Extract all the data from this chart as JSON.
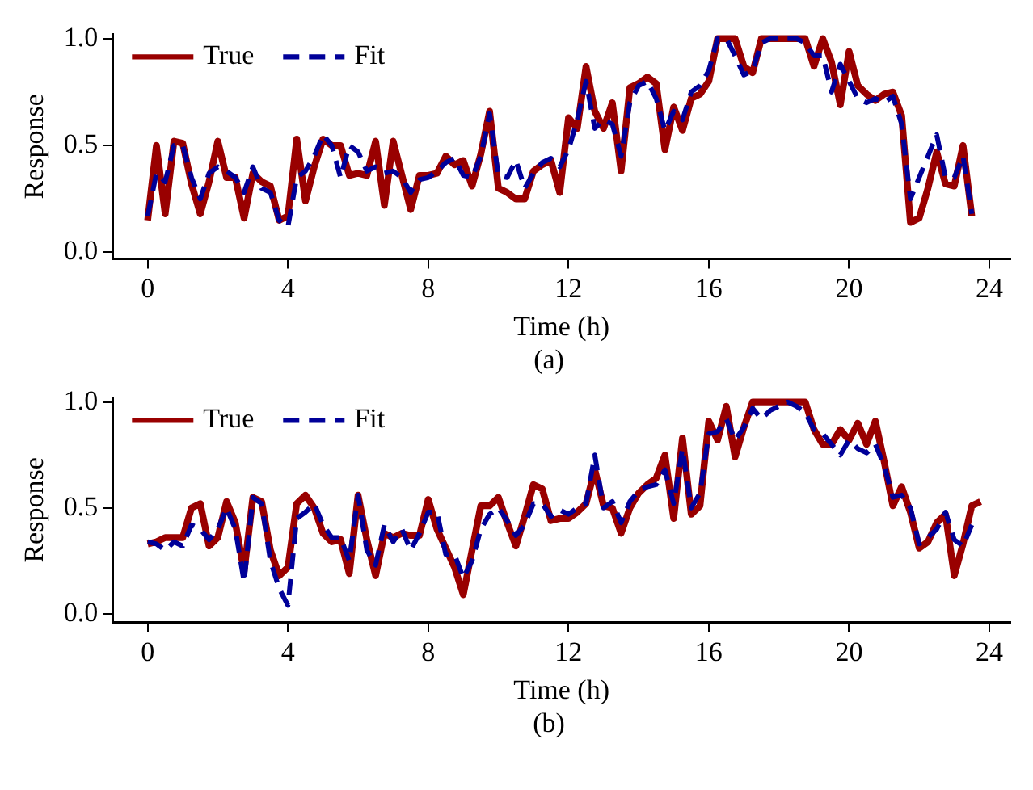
{
  "chart_data": [
    {
      "type": "line",
      "xlabel": "Time (h)",
      "ylabel": "Response",
      "annotations": [
        "(a)"
      ],
      "legend": "top left",
      "grid": false,
      "marker": "none",
      "xlim": [
        -1,
        24.6
      ],
      "xticks": [
        0,
        4,
        8,
        12,
        16,
        20,
        24
      ],
      "ylim": [
        -0.03,
        1.02
      ],
      "yticks": [
        {
          "value": 0,
          "label": "0.0"
        },
        {
          "value": 0.5,
          "label": "0.5"
        },
        {
          "value": 1,
          "label": "1.0"
        }
      ],
      "x": [
        0,
        0.25,
        0.5,
        0.75,
        1,
        1.25,
        1.5,
        1.75,
        2,
        2.25,
        2.5,
        2.75,
        3,
        3.25,
        3.5,
        3.75,
        4,
        4.25,
        4.5,
        4.75,
        5,
        5.25,
        5.5,
        5.75,
        6,
        6.25,
        6.5,
        6.75,
        7,
        7.25,
        7.5,
        7.75,
        8,
        8.25,
        8.5,
        8.75,
        9,
        9.25,
        9.5,
        9.75,
        10,
        10.25,
        10.5,
        10.75,
        11,
        11.25,
        11.5,
        11.75,
        12,
        12.25,
        12.5,
        12.75,
        13,
        13.25,
        13.5,
        13.75,
        14,
        14.25,
        14.5,
        14.75,
        15,
        15.25,
        15.5,
        15.75,
        16,
        16.25,
        16.5,
        16.75,
        17,
        17.25,
        17.5,
        17.75,
        18,
        18.25,
        18.5,
        18.75,
        19,
        19.25,
        19.5,
        19.75,
        20,
        20.25,
        20.5,
        20.75,
        21,
        21.25,
        21.5,
        21.75,
        22,
        22.25,
        22.5,
        22.75,
        23,
        23.25,
        23.5
      ],
      "series": [
        {
          "name": "True",
          "color": "#990000",
          "line_style": "solid",
          "values": [
            0.15,
            0.5,
            0.18,
            0.52,
            0.51,
            0.32,
            0.18,
            0.33,
            0.52,
            0.35,
            0.35,
            0.16,
            0.37,
            0.33,
            0.31,
            0.15,
            0.17,
            0.53,
            0.24,
            0.4,
            0.53,
            0.5,
            0.5,
            0.36,
            0.37,
            0.36,
            0.52,
            0.22,
            0.52,
            0.36,
            0.2,
            0.36,
            0.36,
            0.37,
            0.45,
            0.41,
            0.43,
            0.31,
            0.46,
            0.66,
            0.3,
            0.28,
            0.25,
            0.25,
            0.38,
            0.41,
            0.43,
            0.28,
            0.63,
            0.58,
            0.87,
            0.66,
            0.58,
            0.7,
            0.38,
            0.77,
            0.79,
            0.82,
            0.79,
            0.48,
            0.68,
            0.57,
            0.72,
            0.74,
            0.8,
            1,
            1,
            1,
            0.87,
            0.84,
            1,
            1,
            1,
            1,
            1,
            1,
            0.87,
            1,
            0.89,
            0.69,
            0.94,
            0.78,
            0.74,
            0.71,
            0.74,
            0.75,
            0.64,
            0.14,
            0.16,
            0.3,
            0.47,
            0.32,
            0.31,
            0.5,
            0.17
          ]
        },
        {
          "name": "Fit",
          "color": "#000099",
          "line_style": "dashed",
          "values": [
            0.17,
            0.37,
            0.33,
            0.5,
            0.5,
            0.35,
            0.25,
            0.37,
            0.4,
            0.38,
            0.35,
            0.28,
            0.4,
            0.3,
            0.28,
            0.15,
            0.12,
            0.35,
            0.38,
            0.45,
            0.55,
            0.5,
            0.35,
            0.5,
            0.47,
            0.38,
            0.4,
            0.37,
            0.38,
            0.35,
            0.28,
            0.34,
            0.35,
            0.38,
            0.42,
            0.44,
            0.36,
            0.35,
            0.45,
            0.65,
            0.36,
            0.35,
            0.43,
            0.3,
            0.37,
            0.42,
            0.44,
            0.4,
            0.48,
            0.62,
            0.8,
            0.58,
            0.62,
            0.6,
            0.45,
            0.7,
            0.78,
            0.8,
            0.72,
            0.57,
            0.66,
            0.62,
            0.75,
            0.78,
            0.85,
            1,
            1,
            0.92,
            0.83,
            0.85,
            0.98,
            1,
            1,
            1,
            1,
            0.98,
            0.92,
            0.92,
            0.75,
            0.88,
            0.8,
            0.72,
            0.7,
            0.72,
            0.7,
            0.73,
            0.6,
            0.25,
            0.35,
            0.45,
            0.55,
            0.35,
            0.35,
            0.45,
            0.18
          ]
        }
      ]
    },
    {
      "type": "line",
      "xlabel": "Time (h)",
      "ylabel": "Response",
      "annotations": [
        "(b)"
      ],
      "legend": "top left",
      "grid": false,
      "marker": "none",
      "xlim": [
        -1,
        24.6
      ],
      "xticks": [
        0,
        4,
        8,
        12,
        16,
        20,
        24
      ],
      "ylim": [
        -0.04,
        1.02
      ],
      "yticks": [
        {
          "value": 0,
          "label": "0.0"
        },
        {
          "value": 0.5,
          "label": "0.5"
        },
        {
          "value": 1,
          "label": "1.0"
        }
      ],
      "x": [
        0,
        0.25,
        0.5,
        0.75,
        1,
        1.25,
        1.5,
        1.75,
        2,
        2.25,
        2.5,
        2.75,
        3,
        3.25,
        3.5,
        3.75,
        4,
        4.25,
        4.5,
        4.75,
        5,
        5.25,
        5.5,
        5.75,
        6,
        6.25,
        6.5,
        6.75,
        7,
        7.25,
        7.5,
        7.75,
        8,
        8.25,
        8.5,
        8.75,
        9,
        9.25,
        9.5,
        9.75,
        10,
        10.25,
        10.5,
        10.75,
        11,
        11.25,
        11.5,
        11.75,
        12,
        12.25,
        12.5,
        12.75,
        13,
        13.25,
        13.5,
        13.75,
        14,
        14.25,
        14.5,
        14.75,
        15,
        15.25,
        15.5,
        15.75,
        16,
        16.25,
        16.5,
        16.75,
        17,
        17.25,
        17.5,
        17.75,
        18,
        18.25,
        18.5,
        18.75,
        19,
        19.25,
        19.5,
        19.75,
        20,
        20.25,
        20.5,
        20.75,
        21,
        21.25,
        21.5,
        21.75,
        22,
        22.25,
        22.5,
        22.75,
        23,
        23.25,
        23.5,
        23.75
      ],
      "series": [
        {
          "name": "True",
          "color": "#990000",
          "line_style": "solid",
          "values": [
            0.33,
            0.34,
            0.36,
            0.36,
            0.36,
            0.5,
            0.52,
            0.32,
            0.36,
            0.53,
            0.43,
            0.2,
            0.55,
            0.53,
            0.3,
            0.18,
            0.22,
            0.52,
            0.56,
            0.5,
            0.38,
            0.34,
            0.35,
            0.19,
            0.56,
            0.35,
            0.18,
            0.38,
            0.36,
            0.38,
            0.37,
            0.37,
            0.54,
            0.4,
            0.31,
            0.22,
            0.09,
            0.3,
            0.51,
            0.51,
            0.55,
            0.43,
            0.32,
            0.46,
            0.61,
            0.59,
            0.44,
            0.45,
            0.45,
            0.48,
            0.52,
            0.68,
            0.51,
            0.5,
            0.38,
            0.5,
            0.57,
            0.61,
            0.64,
            0.75,
            0.45,
            0.83,
            0.47,
            0.51,
            0.91,
            0.82,
            0.98,
            0.74,
            0.88,
            1,
            1,
            1,
            1,
            1,
            1,
            1,
            0.87,
            0.8,
            0.8,
            0.87,
            0.82,
            0.9,
            0.8,
            0.91,
            0.72,
            0.51,
            0.6,
            0.48,
            0.31,
            0.34,
            0.43,
            0.47,
            0.18,
            0.33,
            0.51,
            0.53
          ]
        },
        {
          "name": "Fit",
          "color": "#000099",
          "line_style": "dashed",
          "values": [
            0.34,
            0.33,
            0.3,
            0.34,
            0.32,
            0.42,
            0.4,
            0.35,
            0.4,
            0.5,
            0.4,
            0.15,
            0.55,
            0.52,
            0.25,
            0.12,
            0.04,
            0.45,
            0.48,
            0.52,
            0.42,
            0.36,
            0.36,
            0.25,
            0.56,
            0.3,
            0.23,
            0.42,
            0.34,
            0.4,
            0.3,
            0.38,
            0.48,
            0.48,
            0.28,
            0.28,
            0.17,
            0.25,
            0.4,
            0.47,
            0.5,
            0.44,
            0.37,
            0.42,
            0.52,
            0.52,
            0.46,
            0.49,
            0.47,
            0.5,
            0.52,
            0.75,
            0.5,
            0.53,
            0.43,
            0.53,
            0.58,
            0.6,
            0.61,
            0.68,
            0.52,
            0.78,
            0.5,
            0.57,
            0.85,
            0.86,
            0.92,
            0.82,
            0.88,
            0.97,
            0.92,
            0.96,
            0.98,
            1,
            0.98,
            0.95,
            0.87,
            0.85,
            0.8,
            0.75,
            0.82,
            0.78,
            0.76,
            0.8,
            0.7,
            0.55,
            0.56,
            0.5,
            0.33,
            0.36,
            0.4,
            0.48,
            0.35,
            0.32,
            0.42,
            null
          ]
        }
      ]
    }
  ]
}
